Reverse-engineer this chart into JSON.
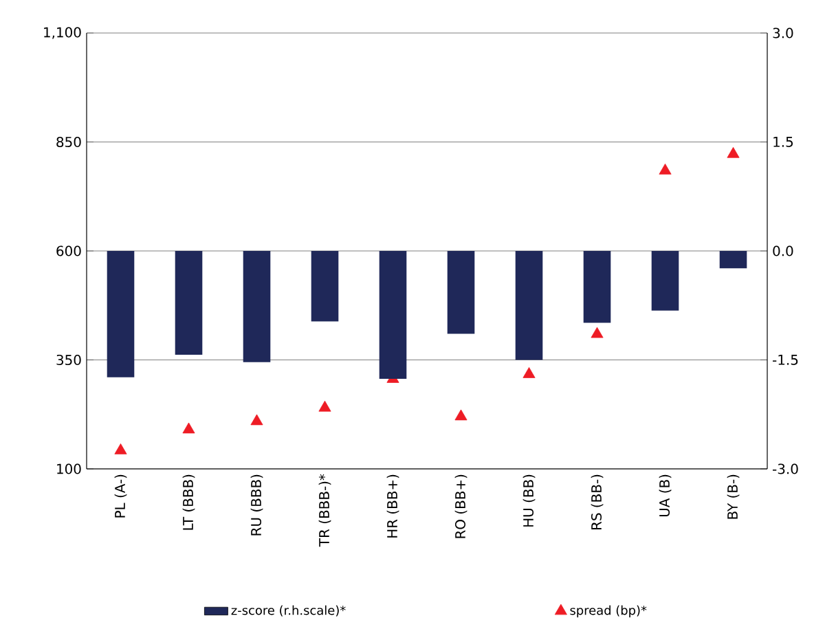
{
  "chart_data": {
    "type": "bar",
    "categories": [
      "PL (A-)",
      "LT (BBB)",
      "RU (BBB)",
      "TR (BBB-)*",
      "HR (BB+)",
      "RO (BB+)",
      "HU (BB)",
      "RS (BB-)",
      "UA (B)",
      "BY (B-)"
    ],
    "series": [
      {
        "name": "z-score (r.h.scale)*",
        "axis": "y2",
        "color": "#1f2859",
        "values": [
          -1.74,
          -1.43,
          -1.53,
          -0.97,
          -1.76,
          -1.14,
          -1.5,
          -0.99,
          -0.82,
          -0.24
        ]
      },
      {
        "name": "spread (bp)*",
        "type": "scatter",
        "marker": "triangle",
        "color": "#ee1c25",
        "values": [
          142,
          190,
          209,
          240,
          306,
          220,
          317,
          409,
          784,
          822
        ]
      }
    ],
    "ylim": [
      100,
      1100
    ],
    "yticks": [
      100,
      350,
      600,
      850,
      {
        "value": 1100,
        "label": "1,100"
      }
    ],
    "y2lim": [
      -3,
      3
    ],
    "y2ticks": [
      {
        "value": -3,
        "label": "-3.0"
      },
      {
        "value": -1.5,
        "label": "-1.5"
      },
      {
        "value": 0,
        "label": "0.0"
      },
      {
        "value": 1.5,
        "label": "1.5"
      },
      {
        "value": 3,
        "label": "3.0"
      }
    ],
    "grid": "y",
    "legend": "bottom"
  }
}
